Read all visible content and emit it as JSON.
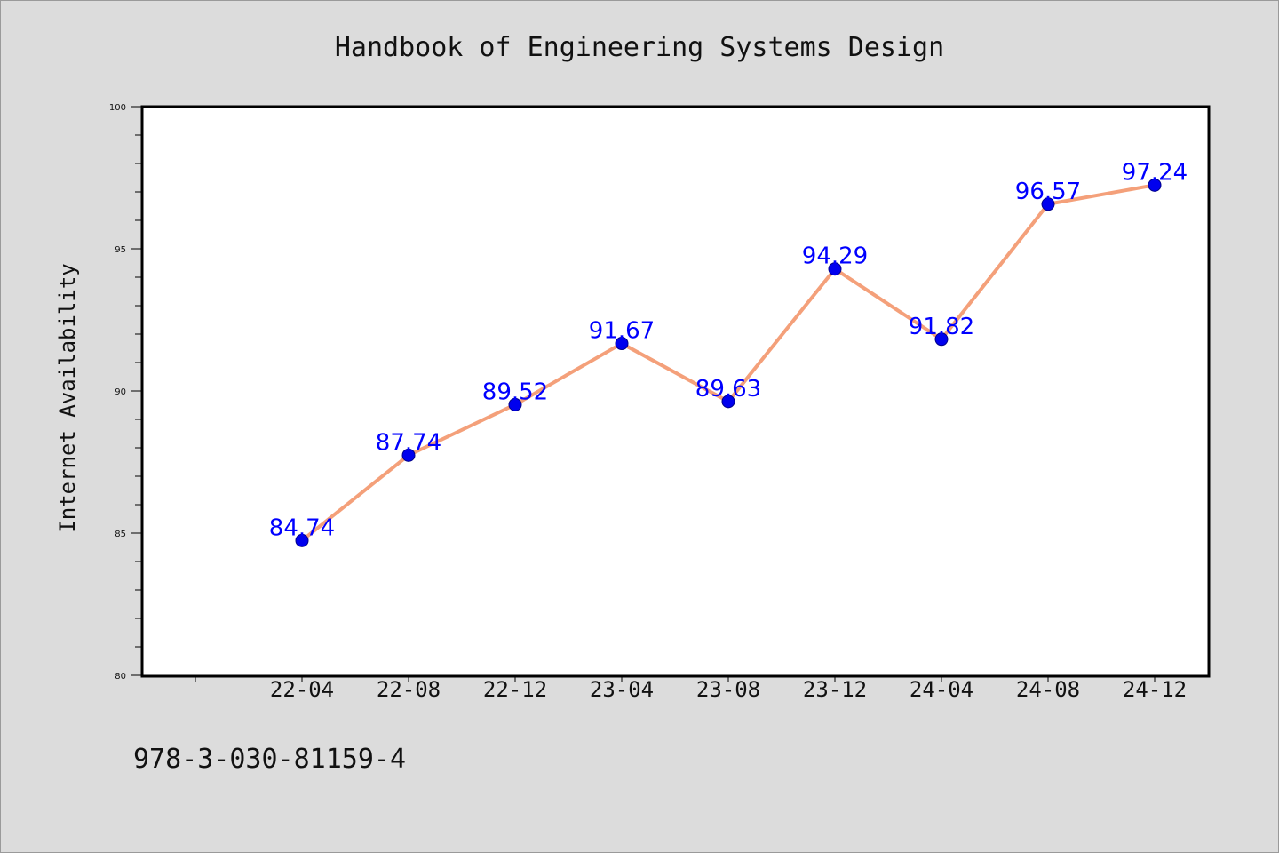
{
  "chart_data": {
    "type": "line",
    "title": "Handbook of Engineering Systems Design",
    "xlabel": "",
    "ylabel": "Internet Availability",
    "categories": [
      "22-04",
      "22-08",
      "22-12",
      "23-04",
      "23-08",
      "23-12",
      "24-04",
      "24-08",
      "24-12"
    ],
    "series": [
      {
        "values": [
          84.74,
          87.74,
          89.52,
          91.67,
          89.63,
          94.29,
          91.82,
          96.57,
          97.24
        ],
        "line_color": "#f4a07a",
        "marker_color": "#0000ee"
      }
    ],
    "data_labels": [
      "84.74",
      "87.74",
      "89.52",
      "91.67",
      "89.63",
      "94.29",
      "91.82",
      "96.57",
      "97.24"
    ],
    "ylim": [
      80,
      100
    ],
    "yticks": [
      "80",
      "85",
      "90",
      "95",
      "100"
    ],
    "grid": false,
    "legend": "none"
  },
  "footer": {
    "isbn": "978-3-030-81159-4"
  },
  "colors": {
    "background": "#dcdcdc",
    "plot_background": "#ffffff",
    "label_color": "#0000ff"
  }
}
